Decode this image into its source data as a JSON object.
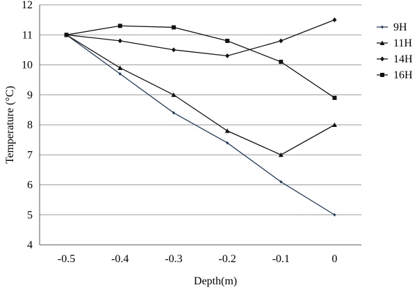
{
  "chart_data": {
    "type": "line",
    "title": "",
    "xlabel": "Depth(m)",
    "ylabel": "Temperature   (°C)",
    "x": [
      -0.5,
      -0.4,
      -0.3,
      -0.2,
      -0.1,
      0
    ],
    "x_tick_labels": [
      "-0.5",
      "-0.4",
      "-0.3",
      "-0.2",
      "-0.1",
      "0"
    ],
    "xlim": [
      -0.55,
      0.05
    ],
    "ylim": [
      4,
      12
    ],
    "y_ticks": [
      4,
      5,
      6,
      7,
      8,
      9,
      10,
      11,
      12
    ],
    "grid": "horizontal",
    "legend_position": "right",
    "series": [
      {
        "name": "9H",
        "marker": "small-diamond",
        "color": "#1f3a5f",
        "values": [
          11,
          9.7,
          8.4,
          7.4,
          6.1,
          5
        ]
      },
      {
        "name": "11H",
        "marker": "triangle",
        "color": "#111111",
        "values": [
          11,
          9.9,
          9.0,
          7.8,
          7.0,
          8.0
        ]
      },
      {
        "name": "14H",
        "marker": "diamond",
        "color": "#111111",
        "values": [
          11,
          10.8,
          10.5,
          10.3,
          10.8,
          11.5
        ]
      },
      {
        "name": "16H",
        "marker": "square",
        "color": "#111111",
        "values": [
          11,
          11.3,
          11.25,
          10.8,
          10.1,
          8.9
        ]
      }
    ]
  }
}
